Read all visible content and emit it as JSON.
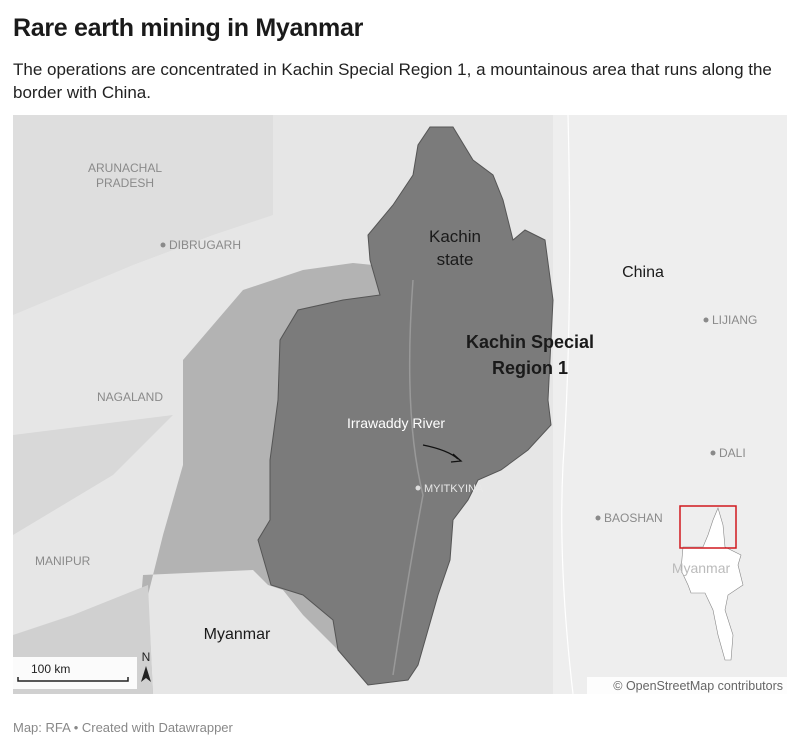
{
  "title": "Rare earth mining in Myanmar",
  "subtitle": "The operations are concentrated in Kachin Special Region 1, a mountainous area that runs along the border with China.",
  "map": {
    "labels": {
      "arunachal": [
        "ARUNACHAL",
        "PRADESH"
      ],
      "dibrugarh": "DIBRUGARH",
      "nagaland": "NAGALAND",
      "manipur": "MANIPUR",
      "kachin_state": [
        "Kachin",
        "state"
      ],
      "special_region": [
        "Kachin Special",
        "Region 1"
      ],
      "river": "Irrawaddy River",
      "myitkyina": "MYITKYINA",
      "china": "China",
      "lijiang": "LIJIANG",
      "dali": "DALI",
      "baoshan": "BAOSHAN",
      "myanmar": "Myanmar",
      "inset_myanmar": "Myanmar"
    },
    "scale_label": "100 km",
    "north_label": "N",
    "attribution": "© OpenStreetMap contributors",
    "colors": {
      "highlight": "#7b7b7b",
      "state": "#a9a9a9",
      "inset_box": "#d0191f"
    }
  },
  "footer": "Map: RFA • Created with Datawrapper"
}
